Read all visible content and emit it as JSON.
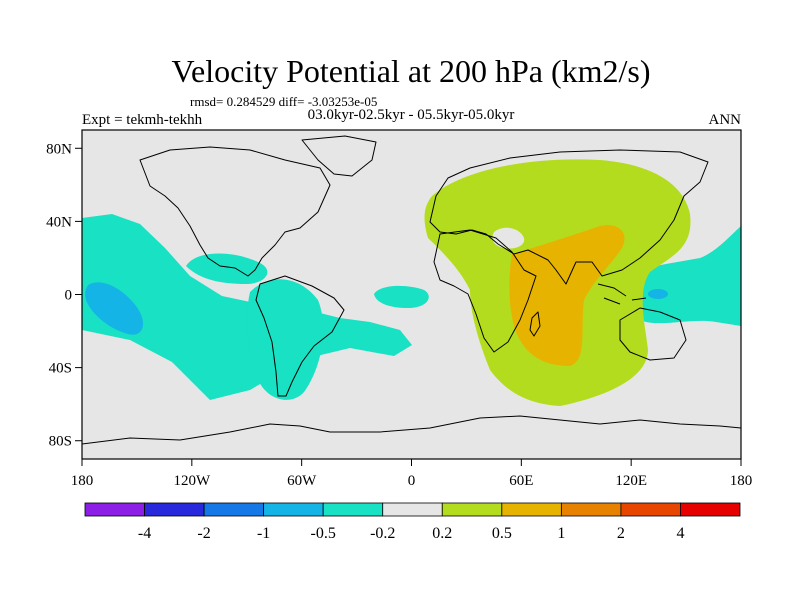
{
  "chart_data": {
    "type": "heatmap",
    "title": "Velocity Potential at 200 hPa (km2/s)",
    "stats": "rmsd= 0.284529 diff= -3.03253e-05",
    "left_label": "Expt = tekmh-tekhh",
    "center_label": "03.0kyr-02.5kyr - 05.5kyr-05.0kyr",
    "right_label": "ANN",
    "x_ticks": [
      {
        "value": -180,
        "label": "180"
      },
      {
        "value": -120,
        "label": "120W"
      },
      {
        "value": -60,
        "label": "60W"
      },
      {
        "value": 0,
        "label": "0"
      },
      {
        "value": 60,
        "label": "60E"
      },
      {
        "value": 120,
        "label": "120E"
      },
      {
        "value": 180,
        "label": "180"
      }
    ],
    "y_ticks": [
      {
        "value": 80,
        "label": "80N"
      },
      {
        "value": 40,
        "label": "40N"
      },
      {
        "value": 0,
        "label": "0"
      },
      {
        "value": -40,
        "label": "40S"
      },
      {
        "value": -80,
        "label": "80S"
      }
    ],
    "xlim": [
      -180,
      180
    ],
    "ylim": [
      -90,
      90
    ],
    "colorbar": {
      "colors": [
        "#8c1ee6",
        "#2828dc",
        "#1478e6",
        "#14b4e6",
        "#19e1c3",
        "#e6e6e6",
        "#b4dc1e",
        "#e6b400",
        "#e68200",
        "#e64600",
        "#e60000"
      ],
      "labels": [
        "-4",
        "-2",
        "-1",
        "-0.5",
        "-0.2",
        "0.2",
        "0.5",
        "1",
        "2",
        "4"
      ]
    }
  }
}
